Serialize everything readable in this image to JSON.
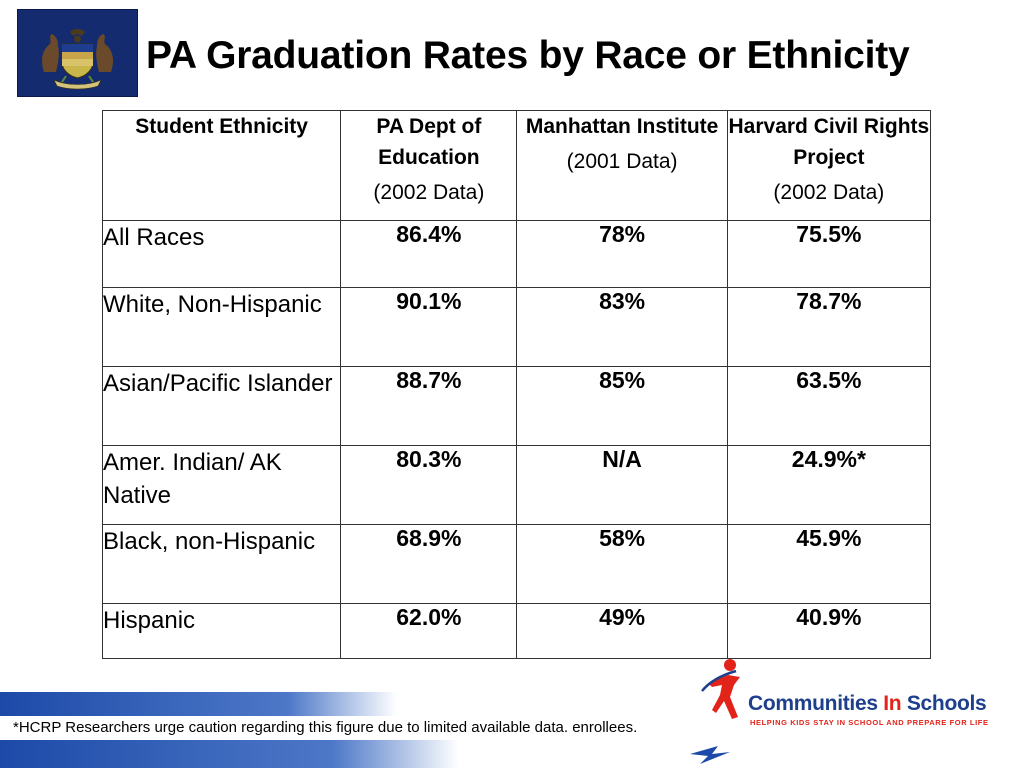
{
  "slide": {
    "title": "PA Graduation Rates by Race or Ethnicity"
  },
  "table": {
    "headers": [
      {
        "label": "Student Ethnicity",
        "sub": ""
      },
      {
        "label": "PA Dept of Education",
        "sub": "(2002 Data)"
      },
      {
        "label": "Manhattan Institute",
        "sub": "(2001 Data)"
      },
      {
        "label": "Harvard Civil Rights Project",
        "sub": "(2002 Data)"
      }
    ],
    "rows": [
      {
        "group": "All Races",
        "pa": "86.4%",
        "mi": "78%",
        "hcrp": "75.5%"
      },
      {
        "group": "White, Non-Hispanic",
        "pa": "90.1%",
        "mi": "83%",
        "hcrp": "78.7%"
      },
      {
        "group": "Asian/Pacific Islander",
        "pa": "88.7%",
        "mi": "85%",
        "hcrp": "63.5%"
      },
      {
        "group": "Amer. Indian/ AK Native",
        "pa": "80.3%",
        "mi": "N/A",
        "hcrp": "24.9%*"
      },
      {
        "group": "Black, non-Hispanic",
        "pa": "68.9%",
        "mi": "58%",
        "hcrp": "45.9%"
      },
      {
        "group": "Hispanic",
        "pa": "62.0%",
        "mi": "49%",
        "hcrp": "40.9%"
      }
    ]
  },
  "footnote": "*HCRP Researchers urge caution regarding this figure due to limited available data. enrollees.",
  "logo": {
    "name_part1": "Communities ",
    "name_in": "In",
    "name_part2": " Schools",
    "tagline": "HELPING KIDS STAY IN SCHOOL AND PREPARE FOR LIFE",
    "icon": "figure-icon"
  },
  "colors": {
    "flag_blue": "#142b6f",
    "footer_blue": "#1d4aa8",
    "logo_blue": "#1d3f8c",
    "logo_red": "#e2231a"
  },
  "icons": {
    "flag": "pennsylvania-flag-icon"
  }
}
